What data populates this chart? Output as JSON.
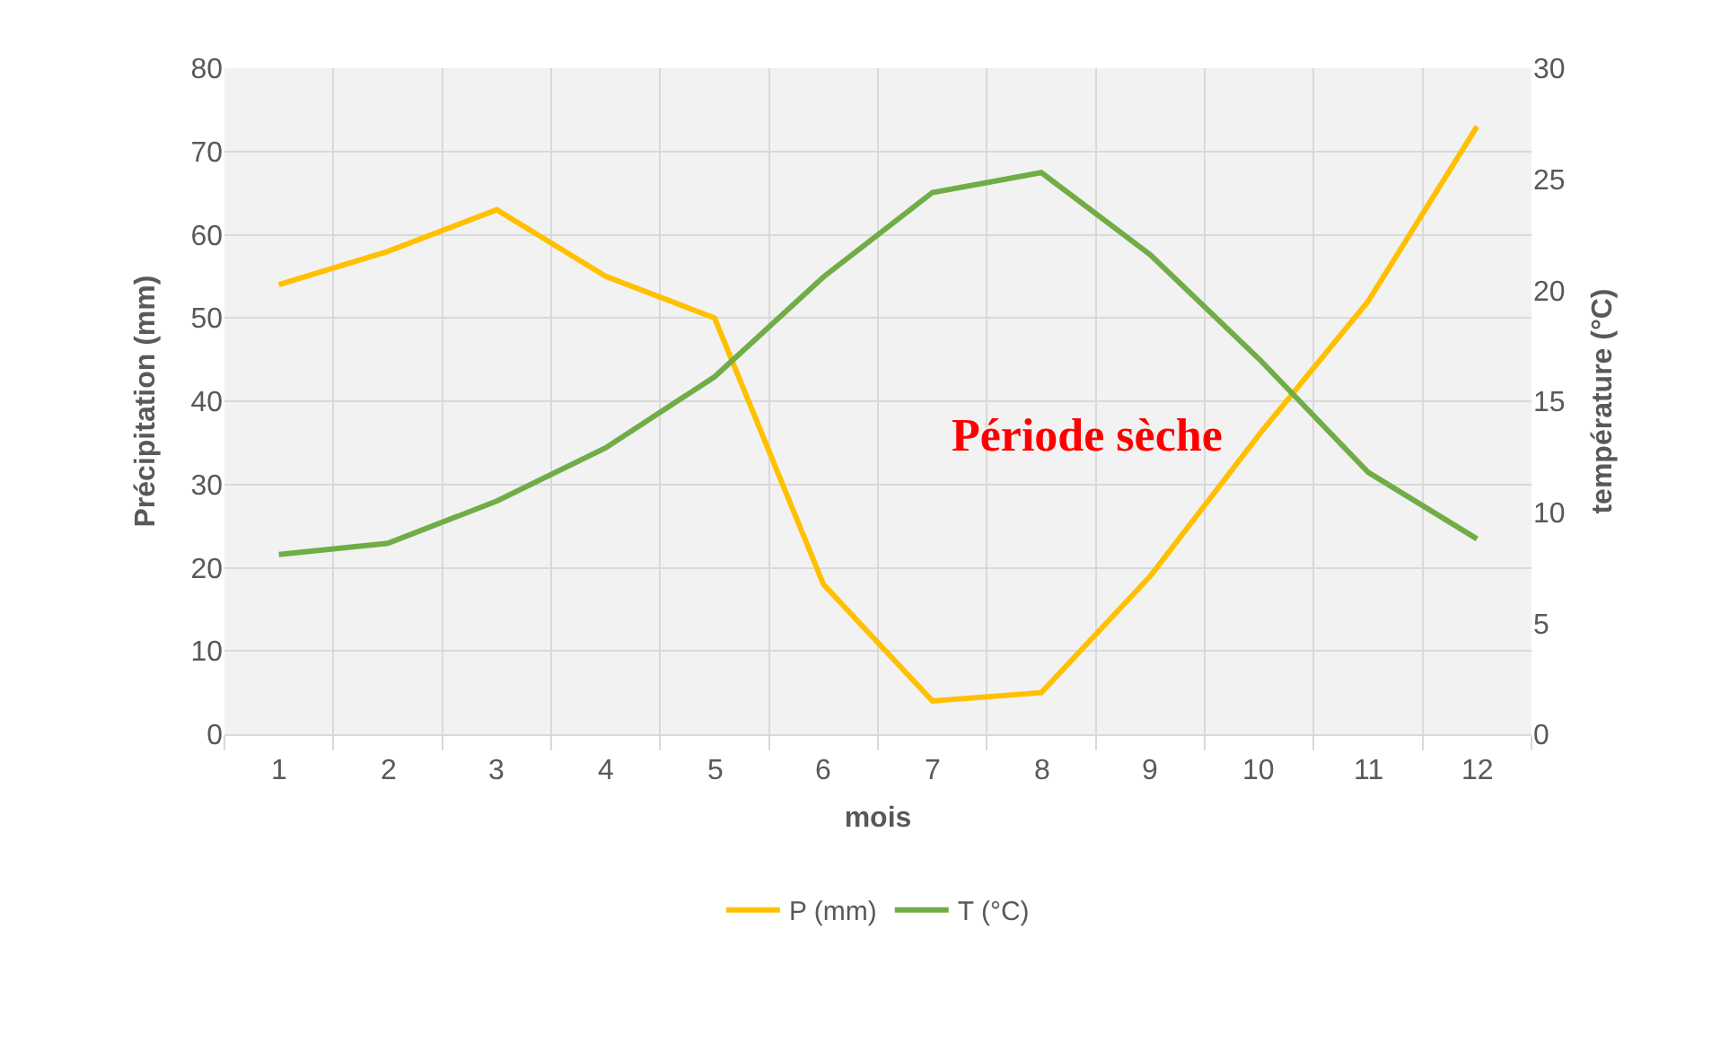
{
  "chart_data": {
    "type": "line",
    "xlabel": "mois",
    "ylabel": "Précipitation (mm)",
    "y2label": "température (°C)",
    "categories": [
      "1",
      "2",
      "3",
      "4",
      "5",
      "6",
      "7",
      "8",
      "9",
      "10",
      "11",
      "12"
    ],
    "series": [
      {
        "name": "P (mm)",
        "color": "#ffc000",
        "values": [
          54,
          58,
          63,
          55,
          50,
          18,
          4,
          5,
          19,
          36,
          52,
          73
        ]
      },
      {
        "name": "T (°C)",
        "color": "#70ad47",
        "axis": "y2",
        "values": [
          8.1,
          8.6,
          10.5,
          12.9,
          16.1,
          20.6,
          24.4,
          25.3,
          21.6,
          16.9,
          11.8,
          8.8
        ]
      }
    ],
    "ylim": [
      0,
      80
    ],
    "yticks": [
      0,
      10,
      20,
      30,
      40,
      50,
      60,
      70,
      80
    ],
    "y2lim": [
      0,
      30
    ],
    "y2ticks": [
      0,
      5,
      10,
      15,
      20,
      25,
      30
    ],
    "annotations": [
      "Période sèche"
    ],
    "grid": true,
    "legend": "bottom",
    "marker": "none",
    "line_style": "solid"
  }
}
